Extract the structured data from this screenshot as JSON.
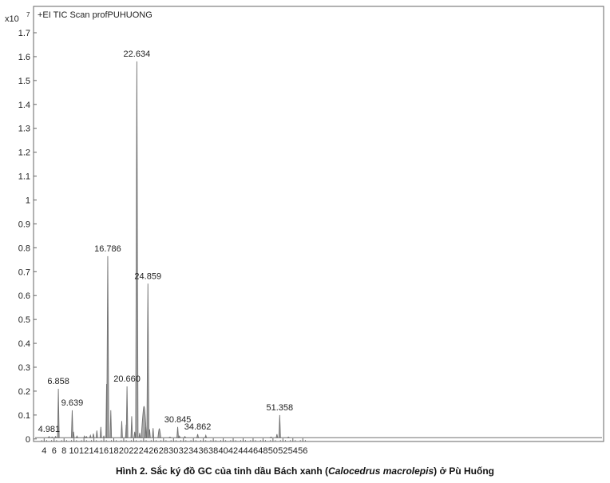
{
  "chart_data": {
    "type": "line",
    "title": "+EI TIC Scan profPUHUONG",
    "y_multiplier": "x10",
    "y_exponent": "7",
    "xlabel": "",
    "ylabel": "",
    "xlim": [
      3.5,
      57
    ],
    "ylim": [
      0,
      1.78
    ],
    "x_ticks": [
      4,
      6,
      8,
      10,
      12,
      14,
      16,
      18,
      20,
      22,
      24,
      26,
      28,
      30,
      32,
      34,
      36,
      38,
      40,
      42,
      44,
      46,
      48,
      50,
      52,
      54,
      56
    ],
    "y_ticks": [
      0,
      0.1,
      0.2,
      0.3,
      0.4,
      0.5,
      0.6,
      0.7,
      0.8,
      0.9,
      1,
      1.1,
      1.2,
      1.3,
      1.4,
      1.5,
      1.6,
      1.7
    ],
    "baseline": 0.005,
    "labeled_peaks": [
      {
        "label": "4.981",
        "x": 4.981,
        "y": 0.01
      },
      {
        "label": "6.858",
        "x": 6.858,
        "y": 0.21
      },
      {
        "label": "9.639",
        "x": 9.639,
        "y": 0.12
      },
      {
        "label": "16.786",
        "x": 16.786,
        "y": 0.765
      },
      {
        "label": "20.660",
        "x": 20.66,
        "y": 0.22
      },
      {
        "label": "22.634",
        "x": 22.634,
        "y": 1.58
      },
      {
        "label": "24.859",
        "x": 24.859,
        "y": 0.65
      },
      {
        "label": "30.845",
        "x": 30.845,
        "y": 0.05
      },
      {
        "label": "34.862",
        "x": 34.862,
        "y": 0.02
      },
      {
        "label": "51.358",
        "x": 51.358,
        "y": 0.1
      }
    ],
    "minor_peaks": [
      {
        "x": 5.6,
        "y": 0.008
      },
      {
        "x": 6.3,
        "y": 0.01
      },
      {
        "x": 9.9,
        "y": 0.03
      },
      {
        "x": 10.6,
        "y": 0.012
      },
      {
        "x": 12.1,
        "y": 0.012
      },
      {
        "x": 12.5,
        "y": 0.01
      },
      {
        "x": 13.3,
        "y": 0.015
      },
      {
        "x": 13.9,
        "y": 0.022
      },
      {
        "x": 14.6,
        "y": 0.035
      },
      {
        "x": 15.4,
        "y": 0.05
      },
      {
        "x": 16.0,
        "y": 0.012
      },
      {
        "x": 16.55,
        "y": 0.23
      },
      {
        "x": 17.4,
        "y": 0.12
      },
      {
        "x": 19.6,
        "y": 0.075
      },
      {
        "x": 20.5,
        "y": 0.06
      },
      {
        "x": 21.6,
        "y": 0.095
      },
      {
        "x": 22.2,
        "y": 0.03
      },
      {
        "x": 23.2,
        "y": 0.025
      },
      {
        "x": 24.4,
        "y": 0.05
      },
      {
        "x": 25.2,
        "y": 0.04
      },
      {
        "x": 25.9,
        "y": 0.045
      },
      {
        "x": 29.3,
        "y": 0.008
      },
      {
        "x": 31.2,
        "y": 0.012
      },
      {
        "x": 32.3,
        "y": 0.01
      },
      {
        "x": 36.5,
        "y": 0.015
      },
      {
        "x": 49.6,
        "y": 0.008
      },
      {
        "x": 50.8,
        "y": 0.02
      },
      {
        "x": 53.1,
        "y": 0.008
      }
    ],
    "broad_humps": [
      {
        "x": 24.1,
        "y": 0.135,
        "width": 0.45
      },
      {
        "x": 27.2,
        "y": 0.04,
        "width": 0.25
      }
    ],
    "colors": {
      "trace": "#707070",
      "fill": "#a8a8a8",
      "axis": "#555555"
    }
  },
  "caption": {
    "prefix": "Hình 2. Sắc ký đồ GC của tinh dầu Bách xanh (",
    "italic": "Calocedrus macrolepis",
    "suffix": ") ở Pù Huống"
  }
}
